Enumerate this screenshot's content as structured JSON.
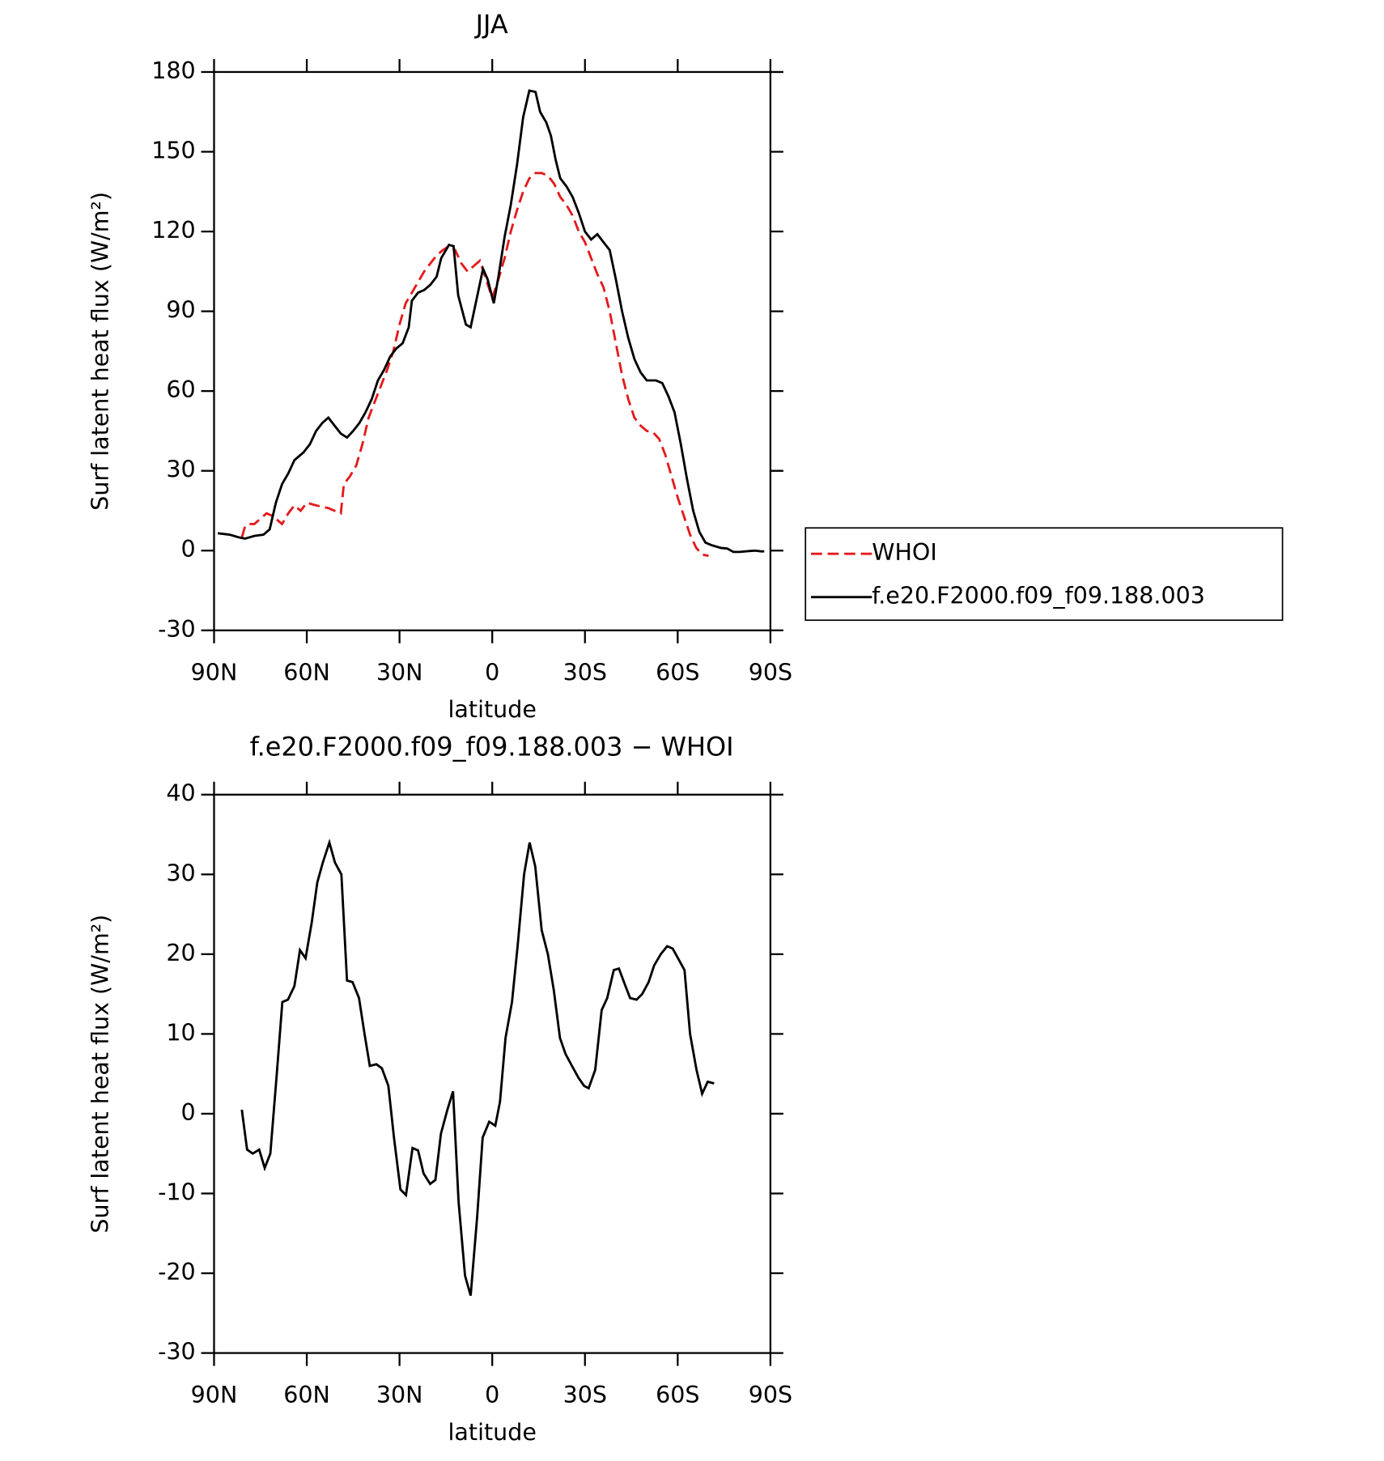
{
  "chart_data": [
    {
      "type": "line",
      "title": "JJA",
      "xlabel": "latitude",
      "ylabel": "Surf latent heat flux (W/m²)",
      "xlim": [
        90,
        -90
      ],
      "xticks": [
        {
          "value": 90,
          "label": "90N"
        },
        {
          "value": 60,
          "label": "60N"
        },
        {
          "value": 30,
          "label": "30N"
        },
        0,
        {
          "value": -30,
          "label": "30S"
        },
        {
          "value": -60,
          "label": "60S"
        },
        {
          "value": -90,
          "label": "90S"
        }
      ],
      "ylim": [
        -30,
        180
      ],
      "yticks": [
        -30,
        0,
        30,
        60,
        90,
        120,
        150,
        180
      ],
      "legend": "right",
      "series": [
        {
          "name": "WHOI",
          "color": "#e41a1c",
          "dashed": true,
          "x": [
            81,
            80,
            79,
            77,
            75,
            73,
            71,
            68,
            66,
            64,
            62,
            60,
            57,
            53,
            51,
            49,
            48,
            46,
            44,
            42,
            40,
            38,
            36,
            34,
            32,
            30,
            28,
            26,
            24,
            22,
            20,
            18,
            16,
            14,
            12,
            10,
            8,
            6,
            4,
            2,
            0,
            -2,
            -4,
            -6,
            -8,
            -10,
            -12,
            -14,
            -16,
            -18,
            -20,
            -22,
            -24,
            -26,
            -28,
            -30,
            -32,
            -34,
            -36,
            -38,
            -40,
            -42,
            -44,
            -46,
            -48,
            -50,
            -52,
            -54,
            -56,
            -58,
            -60,
            -62,
            -64,
            -66,
            -68,
            -70
          ],
          "values": [
            5,
            9,
            10,
            10,
            12,
            14,
            13,
            10,
            14,
            17,
            15,
            18,
            17,
            16,
            15,
            14,
            25,
            28,
            32,
            40,
            50,
            56,
            62,
            68,
            75,
            85,
            93,
            97,
            101,
            105,
            108,
            111,
            113,
            114.5,
            113,
            108,
            105,
            107,
            109,
            102,
            95,
            102,
            110,
            120,
            128,
            135,
            140,
            142,
            142,
            141,
            138,
            133,
            130,
            126,
            120,
            116,
            110,
            104,
            99,
            90,
            78,
            66,
            57,
            50,
            47,
            45,
            44.5,
            42,
            36,
            28,
            20,
            13,
            6,
            1,
            -1.5,
            -2
          ]
        },
        {
          "name": "f.e20.F2000.f09_f09.188.003",
          "color": "#000000",
          "dashed": false,
          "x": [
            88.8,
            85,
            82,
            80,
            77,
            74,
            72,
            70,
            68,
            66,
            64,
            61,
            59,
            57,
            55,
            53,
            51,
            49,
            47,
            45,
            43,
            41,
            39,
            37,
            35,
            33,
            31,
            29,
            27,
            26,
            24,
            22,
            20,
            18,
            16.5,
            14,
            12.5,
            11,
            8.5,
            7,
            5,
            3,
            1.5,
            -0.5,
            -2,
            -4,
            -6,
            -8,
            -10,
            -12,
            -14,
            -15.5,
            -17.5,
            -19,
            -20.5,
            -22,
            -24,
            -26,
            -28,
            -30,
            -32,
            -34,
            -36,
            -38,
            -40,
            -42,
            -44,
            -46,
            -48,
            -50,
            -53,
            -55,
            -57,
            -59,
            -61,
            -63,
            -65,
            -67,
            -69,
            -71,
            -74,
            -76,
            -78,
            -80,
            -83,
            -85,
            -87,
            -88
          ],
          "values": [
            6.5,
            6,
            5,
            4.5,
            5.5,
            6,
            8,
            18,
            25,
            29,
            34,
            37,
            40,
            45,
            48,
            50,
            47,
            44,
            42.5,
            45,
            48,
            52,
            57,
            64,
            68,
            73,
            76,
            78,
            84,
            94,
            97,
            98,
            100,
            103,
            110,
            115,
            114.5,
            96,
            85,
            84,
            95,
            106,
            102,
            93,
            103,
            118,
            130,
            145,
            163,
            173,
            172.5,
            165,
            161,
            156,
            147,
            140,
            137,
            133,
            127,
            120,
            117,
            119,
            116,
            113,
            102,
            90,
            80,
            72,
            67,
            64,
            64,
            63,
            58,
            52,
            40,
            27,
            15,
            7,
            3,
            2,
            1,
            0.8,
            -0.5,
            -0.5,
            -0.2,
            0,
            -0.3,
            -0.3
          ]
        }
      ]
    },
    {
      "type": "line",
      "title": "f.e20.F2000.f09_f09.188.003 − WHOI",
      "xlabel": "latitude",
      "ylabel": "Surf latent heat flux (W/m²)",
      "xlim": [
        90,
        -90
      ],
      "xticks": [
        {
          "value": 90,
          "label": "90N"
        },
        {
          "value": 60,
          "label": "60N"
        },
        {
          "value": 30,
          "label": "30N"
        },
        0,
        {
          "value": -30,
          "label": "30S"
        },
        {
          "value": -60,
          "label": "60S"
        },
        {
          "value": -90,
          "label": "90S"
        }
      ],
      "ylim": [
        -30,
        40
      ],
      "yticks": [
        -30,
        -20,
        -10,
        0,
        10,
        20,
        30,
        40
      ],
      "color": "#000000",
      "x": [
        81,
        79.3,
        77.5,
        75.4,
        73.6,
        71.8,
        69.7,
        67.9,
        66.1,
        64,
        62.2,
        60.4,
        58.4,
        56.6,
        54.8,
        52.7,
        50.9,
        48.8,
        47,
        45.2,
        43.1,
        41.3,
        39.6,
        37.5,
        35.7,
        33.6,
        31.8,
        29.7,
        27.9,
        25.8,
        24,
        22.2,
        20.1,
        18.4,
        16.6,
        14.5,
        12.7,
        10.9,
        8.8,
        7,
        4.9,
        3.1,
        1,
        -1,
        -2.5,
        -4.3,
        -6.4,
        -8.2,
        -10.3,
        -12.1,
        -13.9,
        -16,
        -18,
        -19.9,
        -21.9,
        -23.7,
        -25.8,
        -27.9,
        -29.7,
        -31.2,
        -33.3,
        -35.4,
        -37.2,
        -39.3,
        -41,
        -43.1,
        -44.6,
        -46.7,
        -48.5,
        -50.6,
        -52.4,
        -54.5,
        -56.6,
        -58.4,
        -60.1,
        -62.2,
        -64,
        -66.1,
        -67.9,
        -69.7,
        -71.8
      ],
      "values": [
        0.5,
        -4.5,
        -5,
        -4.5,
        -6.8,
        -5,
        5,
        14,
        14.3,
        16,
        20.5,
        19.5,
        24,
        29,
        31.5,
        34,
        31.5,
        30,
        16.7,
        16.5,
        14.5,
        10,
        6,
        6.2,
        5.7,
        3.5,
        -3,
        -9.5,
        -10.2,
        -4.3,
        -4.6,
        -7.5,
        -8.8,
        -8.3,
        -2.5,
        0.5,
        2.8,
        -11,
        -20.3,
        -22.8,
        -13,
        -3,
        -1,
        -1.5,
        1.5,
        9.5,
        14,
        21,
        30,
        34,
        31,
        23,
        20,
        15.5,
        9.5,
        7.5,
        6,
        4.5,
        3.5,
        3.2,
        5.5,
        13,
        14.5,
        18,
        18.2,
        16,
        14.5,
        14.3,
        15,
        16.5,
        18.6,
        20,
        21,
        20.7,
        19.5,
        18,
        10,
        5.5,
        2.5,
        4,
        3.8
      ]
    }
  ]
}
